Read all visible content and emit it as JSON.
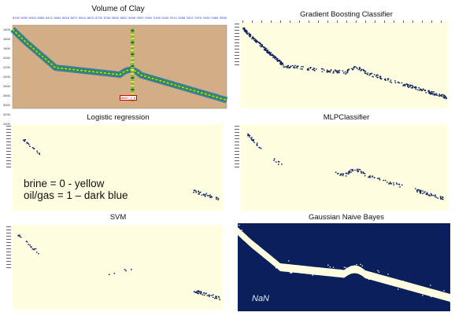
{
  "titles": {
    "clay": "Volume of Clay",
    "gbc": "Gradient Boosting Classifier",
    "logreg": "Logistic regression",
    "mlp": "MLPClassifier",
    "svm": "SVM",
    "gnb": "Gaussian Naive Bayes"
  },
  "legend": {
    "line1": "brine = 0 - yellow",
    "line2": "oil/gas = 1 – dark blue"
  },
  "gnb_note": "NaN",
  "clay_panel": {
    "x_ticks": [
      "8190",
      "8250",
      "8304",
      "8358",
      "8412",
      "8464",
      "8518",
      "8572",
      "8624",
      "8676",
      "8732",
      "8786",
      "8840",
      "8892",
      "8946",
      "9000",
      "9054",
      "9108",
      "9160",
      "9214",
      "9268",
      "9322",
      "9376",
      "9430",
      "9484",
      "9538"
    ],
    "y_ticks": [
      "1400",
      "1600",
      "1800",
      "2000",
      "2200",
      "2400",
      "2600",
      "2800",
      "3000",
      "3200",
      "3400"
    ],
    "well_label": "#B07_2_8"
  },
  "colors": {
    "tan": "#d2ad85",
    "cream": "#fffee0",
    "dark_blue": "#0b1f5c",
    "yellow": "#f2e24a"
  },
  "chart_data": [
    {
      "type": "heatmap",
      "title": "Volume of Clay",
      "description_key": "clay"
    },
    {
      "type": "scatter",
      "title": "Gradient Boosting Classifier",
      "classes": [
        "brine = 0",
        "oil/gas = 1"
      ]
    },
    {
      "type": "scatter",
      "title": "Logistic regression",
      "classes": [
        "brine = 0",
        "oil/gas = 1"
      ]
    },
    {
      "type": "scatter",
      "title": "MLPClassifier",
      "classes": [
        "brine = 0",
        "oil/gas = 1"
      ]
    },
    {
      "type": "scatter",
      "title": "SVM",
      "classes": [
        "brine = 0",
        "oil/gas = 1"
      ]
    },
    {
      "type": "heatmap",
      "title": "Gaussian Naive Bayes",
      "note": "NaN"
    }
  ]
}
